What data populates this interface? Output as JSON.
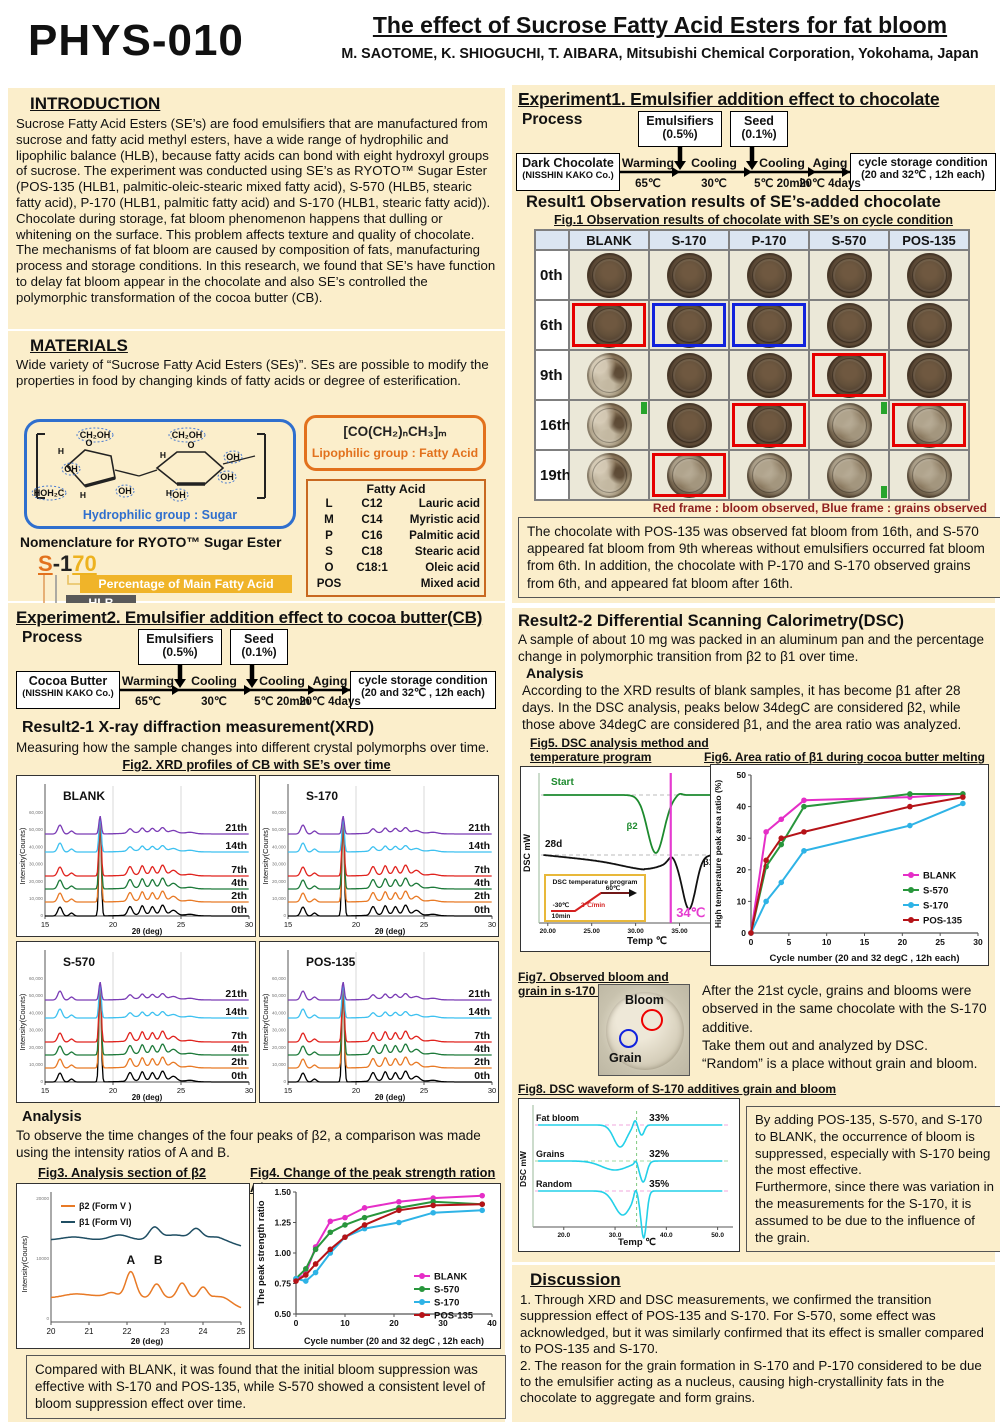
{
  "header": {
    "code": "PHYS-010",
    "title": "The effect of Sucrose Fatty Acid Esters for fat bloom",
    "authors": "M. SAOTOME, K. SHIOGUCHI, T. AIBARA, Mitsubishi Chemical Corporation, Yokohama, Japan"
  },
  "introduction": {
    "title": "INTRODUCTION",
    "body": "Sucrose Fatty Acid Esters (SE’s) are food emulsifiers that are manufactured from sucrose and fatty acid methyl esters, have a wide range of hydrophilic and lipophilic balance (HLB), because fatty acids can bond with eight hydroxyl groups of sucrose. The experiment was conducted using SE’s as RYOTO™ Sugar Ester (POS-135 (HLB1, palmitic-oleic-stearic mixed fatty acid), S-570 (HLB5, stearic fatty acid), P-170 (HLB1, palmitic fatty acid) and S-170 (HLB1, stearic fatty acid)). Chocolate during storage, fat bloom phenomenon happens that dulling or whitening on the surface. This problem affects texture and quality of chocolate. The mechanisms of fat bloom are caused by composition of fats, manufacturing process and storage conditions. In this research, we found that SE’s have function to delay fat bloom appear in the chocolate and also SE’s controlled the polymorphic transformation of the cocoa butter (CB)."
  },
  "materials": {
    "title": "MATERIALS",
    "body": "Wide variety of “Sucrose Fatty Acid Esters (SEs)”. SEs are possible to modify the properties in food by changing kinds of fatty acids or degree of esterification.",
    "hydrophilic_label": "Hydrophilic group : Sugar",
    "formula": "[CO(CH₂)ₙCH₃]ₘ",
    "lipophilic_label": "Lipophilic group : Fatty Acid",
    "molecule_labels": [
      "CH₂OH",
      "CH₂OH",
      "HOH₂C",
      "OH",
      "OH",
      "OH",
      "OH",
      "OH",
      "O",
      "O",
      "H",
      "H",
      "H",
      "H"
    ],
    "fatty_acid_table": {
      "title": "Fatty Acid",
      "rows": [
        [
          "L",
          "C12",
          "Lauric acid"
        ],
        [
          "M",
          "C14",
          "Myristic acid"
        ],
        [
          "P",
          "C16",
          "Palmitic acid"
        ],
        [
          "S",
          "C18",
          "Stearic acid"
        ],
        [
          "O",
          "C18:1",
          "Oleic acid"
        ],
        [
          "POS",
          "",
          "Mixed acid"
        ]
      ]
    },
    "nomenclature_title": "Nomenclature for RYOTO™ Sugar Ester",
    "code_parts": {
      "kind": "S",
      "hlb": "-1",
      "pct": "70"
    },
    "callouts": {
      "pct": "Percentage of Main Fatty Acid",
      "hlb": "HLB",
      "kind": "Kinds of Fatty Acid"
    }
  },
  "experiment1": {
    "title": "Experiment1. Emulsifier addition effect to chocolate",
    "process_label": "Process",
    "flow": {
      "start": {
        "line1": "Dark Chocolate",
        "line2": "(NISSHIN KAKO Co.)"
      },
      "add1": {
        "line1": "Emulsifiers",
        "line2": "(0.5%)"
      },
      "add2": {
        "line1": "Seed",
        "line2": "(0.1%)"
      },
      "steps": [
        {
          "name": "Warming",
          "temp": "65℃"
        },
        {
          "name": "Cooling",
          "temp": "30℃"
        },
        {
          "name": "Cooling",
          "temp": "5℃ 20min"
        },
        {
          "name": "Aging",
          "temp": "20℃ 4days"
        }
      ],
      "end": {
        "line1": "cycle storage condition",
        "line2": "(20 and 32℃ , 12h each)"
      }
    },
    "result_title": "Result1 Observation results of SE’s-added chocolate",
    "fig1_caption": "Fig.1 Observation results of chocolate with SE’s on cycle condition",
    "table": {
      "columns": [
        "BLANK",
        "S-170",
        "P-170",
        "S-570",
        "POS-135"
      ],
      "rows": [
        {
          "label": "0th",
          "cells": [
            {
              "look": "n"
            },
            {
              "look": "n"
            },
            {
              "look": "n"
            },
            {
              "look": "n"
            },
            {
              "look": "n"
            }
          ]
        },
        {
          "label": "6th",
          "cells": [
            {
              "look": "n",
              "frame": "red"
            },
            {
              "look": "n",
              "frame": "blue"
            },
            {
              "look": "n",
              "frame": "blue"
            },
            {
              "look": "n"
            },
            {
              "look": "n"
            }
          ]
        },
        {
          "label": "9th",
          "cells": [
            {
              "look": "h"
            },
            {
              "look": "n"
            },
            {
              "look": "n"
            },
            {
              "look": "n",
              "frame": "red"
            },
            {
              "look": "n"
            }
          ]
        },
        {
          "label": "16th",
          "cells": [
            {
              "look": "h",
              "mark": "tr"
            },
            {
              "look": "n"
            },
            {
              "look": "n",
              "frame": "red"
            },
            {
              "look": "b",
              "mark": "tr"
            },
            {
              "look": "b",
              "frame": "red"
            }
          ]
        },
        {
          "label": "19th",
          "cells": [
            {
              "look": "h"
            },
            {
              "look": "b",
              "frame": "red"
            },
            {
              "look": "b"
            },
            {
              "look": "b",
              "mark": "br"
            },
            {
              "look": "b"
            }
          ]
        }
      ]
    },
    "frame_legend": "Red frame : bloom observed, Blue frame : grains observed",
    "summary": "The chocolate with POS-135 was observed fat bloom from 16th, and S-570 appeared fat bloom from 9th whereas without emulsifiers occurred fat bloom from 6th. In addition, the chocolate with P-170 and S-170 observed grains from 6th, and appeared fat bloom after 16th."
  },
  "experiment2": {
    "title": "Experiment2. Emulsifier addition effect to cocoa butter(CB)",
    "process_label": "Process",
    "flow": {
      "start": {
        "line1": "Cocoa Butter",
        "line2": "(NISSHIN KAKO Co.)"
      },
      "add1": {
        "line1": "Emulsifiers",
        "line2": "(0.5%)"
      },
      "add2": {
        "line1": "Seed",
        "line2": "(0.1%)"
      },
      "steps": [
        {
          "name": "Warming",
          "temp": "65℃"
        },
        {
          "name": "Cooling",
          "temp": "30℃"
        },
        {
          "name": "Cooling",
          "temp": "5℃ 20min"
        },
        {
          "name": "Aging",
          "temp": "20℃ 4days"
        }
      ],
      "end": {
        "line1": "cycle storage condition",
        "line2": "(20 and 32℃ , 12h each)"
      }
    },
    "result_title": "Result2-1  X-ray diffraction measurement(XRD)",
    "method_note": "Measuring how the sample changes into different crystal polymorphs over time.",
    "fig2_caption": "Fig2. XRD profiles of CB with SE’s over time",
    "analysis_title": "Analysis",
    "analysis_body": "To observe the time changes of the four peaks of β2, a comparison was made using the intensity ratios of A and B.",
    "fig3_caption": "Fig3. Analysis section of β2",
    "fig4_caption": "Fig4. Change of the peak strength ration A/B",
    "conclusion": "Compared with BLANK, it was found that the initial bloom suppression was effective with S-170 and POS-135, while S-570 showed a consistent level of bloom suppression effect over time."
  },
  "result22": {
    "title": "Result2-2 Differential Scanning Calorimetry(DSC)",
    "intro": "A sample of about 10 mg was packed in an aluminum pan and the percentage change in polymorphic transition from β2 to β1 over time.",
    "analysis_title": "Analysis",
    "analysis_body": "According to the XRD results of blank samples, it has become β1 after 28 days. In the DSC analysis, peaks below 34degC are considered β2, while those above 34degC are considered β1, and the area ratio was analyzed.",
    "fig5_caption": "Fig5. DSC analysis method and temperature program",
    "fig6_caption": "Fig6. Area ratio of β1 during cocoa butter melting peak",
    "fig7_caption": "Fig7. Observed bloom and grain in s-170 adding",
    "fig7_bloom": "Bloom",
    "fig7_grain": "Grain",
    "fig7_text": "After the 21st cycle, grains and blooms were observed in the same chocolate with the S-170 additive.\nTake them out and analyzed by DSC.\n“Random” is a place without grain and bloom.",
    "fig8_caption": "Fig8. DSC waveform of S-170 additives grain and bloom",
    "fig8_box": "By adding POS-135, S-570, and S-170 to BLANK, the occurrence of bloom is suppressed, especially with S-170 being the most effective.\nFurthermore, since there was variation in the measurements for the S-170, it is assumed to be due to the influence of the grain."
  },
  "discussion": {
    "title": "Discussion",
    "body1": "1. Through XRD and DSC measurements, we confirmed the transition suppression effect of POS-135 and S-170. For S-570, some effect was acknowledged, but it was similarly confirmed that its effect is smaller compared to POS-135 and S-170.",
    "body2": "2. The reason for the grain formation in S-170 and P-170 considered to be due to the emulsifier acting as a nucleus, causing high-crystallinity fats in the chocolate to aggregate and form grains."
  },
  "colors": {
    "panel_bg": "#fbeecb",
    "table_header_bg": "#dbe5f1",
    "frame_bloom": "#e60000",
    "frame_grain": "#1122dd",
    "series": {
      "BLANK": "#e52ec7",
      "S-570": "#28963c",
      "S-170": "#2eb3e6",
      "POS-135": "#b51318"
    },
    "xrd_traces": {
      "0th": "#000000",
      "2th": "#e87a26",
      "4th": "#1d7a3a",
      "7th": "#e0231e",
      "14th": "#3ec1f0",
      "21th": "#7a3bb5"
    }
  },
  "chart_data": [
    {
      "id": "fig2",
      "type": "line",
      "title": "Fig2. XRD profiles of CB with SE's over time",
      "panels": [
        "BLANK",
        "S-170",
        "S-570",
        "POS-135"
      ],
      "xlabel": "2θ (deg)",
      "ylabel": "Intensity(Counts)",
      "xlim": [
        15,
        30
      ],
      "xticks": [
        15,
        20,
        25,
        30
      ],
      "ytick_labels": [
        "60,000",
        "50,000",
        "40,000",
        "30,000",
        "20,000",
        "10,000",
        "0"
      ],
      "traces": [
        "0th",
        "2th",
        "4th",
        "7th",
        "14th",
        "21th"
      ],
      "note": "Stacked XRD intensity profiles per cycle; sharp main peak near 2θ=19deg in all traces; β2 secondary peak cluster at 2θ=21–24deg strong at 0th–7th cycles and smoothed out by 14th–21th cycles."
    },
    {
      "id": "fig3",
      "type": "line",
      "title": "Fig3. Analysis section of β2",
      "xlabel": "2θ (deg)",
      "ylabel": "Intensity(Counts)",
      "xlim": [
        20,
        25
      ],
      "xticks": [
        20,
        21,
        22,
        23,
        24,
        25
      ],
      "series_labels": [
        "β2 (Form V )",
        "β1 (Form VI)"
      ],
      "peak_A_2theta": 22.1,
      "peak_B_2theta": 22.8,
      "annotations": [
        "A",
        "B"
      ],
      "note": "β2 (Form V, orange) shows four peaks between 2θ=22 and 24.2; peaks A (≈22.1) and B (≈22.8) are used for the A/B intensity ratio. β1 (Form VI, dark teal) curve drawn above."
    },
    {
      "id": "fig4",
      "type": "line",
      "title": "Fig4. Change of the peak strength ration A/B",
      "xlabel": "Cycle number (20 and 32 degC , 12h each)",
      "ylabel": "The peak strength ratio",
      "xlim": [
        0,
        40
      ],
      "ylim": [
        0.5,
        1.5
      ],
      "xticks": [
        0,
        10,
        20,
        30,
        40
      ],
      "yticks": [
        0.5,
        0.75,
        1.0,
        1.25,
        1.5
      ],
      "x": [
        0,
        2,
        4,
        7,
        10,
        14,
        21,
        28,
        38
      ],
      "series": [
        {
          "name": "BLANK",
          "values": [
            0.78,
            0.83,
            1.05,
            1.26,
            1.29,
            1.37,
            1.42,
            1.45,
            1.47
          ]
        },
        {
          "name": "S-570",
          "values": [
            0.79,
            0.87,
            1.03,
            1.17,
            1.23,
            1.29,
            1.37,
            1.42,
            1.4
          ]
        },
        {
          "name": "S-170",
          "values": [
            0.79,
            0.77,
            0.84,
            1.0,
            1.13,
            1.2,
            1.25,
            1.33,
            1.35
          ]
        },
        {
          "name": "POS-135",
          "values": [
            0.77,
            0.82,
            0.91,
            1.03,
            1.13,
            1.23,
            1.35,
            1.39,
            1.4
          ]
        }
      ],
      "legend": [
        "BLANK",
        "S-570",
        "S-170",
        "POS-135"
      ],
      "legend_position": "lower right"
    },
    {
      "id": "fig5",
      "type": "line",
      "title": "Fig5. DSC analysis method and temperature program",
      "xlabel": "Temp ℃",
      "ylabel": "DSC mW",
      "xlim": [
        20,
        42
      ],
      "xticks": [
        "20.00",
        "25.00",
        "30.00",
        "35.00",
        "40.00"
      ],
      "curve_labels": {
        "top": "Start",
        "top_peak": "β2",
        "bottom": "28d",
        "bottom_peak1": "β2",
        "bottom_peak2": "β1"
      },
      "threshold_line": "34℃",
      "program_box": {
        "title": "DSC temperature program",
        "start": "-30℃",
        "hold": "10min",
        "rate": "2℃/min",
        "end": "60℃"
      },
      "note": "Start sample melts as single β2 endotherm near 32℃; 28d sample shows β2 shoulder below 34℃ and β1 endotherm near 36℃."
    },
    {
      "id": "fig6",
      "type": "line",
      "title": "Fig6. Area ratio of β1 during cocoa butter melting peak",
      "xlabel": "Cycle number (20 and 32 degC , 12h each)",
      "ylabel": "High temperature peak area ratio (%)",
      "xlim": [
        0,
        30
      ],
      "ylim": [
        0,
        50
      ],
      "xticks": [
        0,
        5,
        10,
        15,
        20,
        25,
        30
      ],
      "yticks": [
        0,
        10,
        20,
        30,
        40,
        50
      ],
      "x": [
        0,
        2,
        4,
        7,
        21,
        28
      ],
      "series": [
        {
          "name": "BLANK",
          "values": [
            0,
            32,
            36,
            42,
            43,
            44
          ]
        },
        {
          "name": "S-570",
          "values": [
            0,
            21,
            28,
            40,
            44,
            44
          ]
        },
        {
          "name": "S-170",
          "values": [
            0,
            10,
            16,
            26,
            34,
            41
          ]
        },
        {
          "name": "POS-135",
          "values": [
            0,
            23,
            30,
            32,
            40,
            43
          ]
        }
      ],
      "legend": [
        "BLANK",
        "S-570",
        "S-170",
        "POS-135"
      ],
      "legend_position": "right"
    },
    {
      "id": "fig8",
      "type": "line",
      "title": "Fig8. DSC waveform of S-170 additives grain and bloom",
      "xlabel": "Temp ℃",
      "ylabel": "DSC mW",
      "xticks": [
        "20.0",
        "30.0",
        "40.0",
        "50.0"
      ],
      "traces": [
        {
          "name": "Fat bloom",
          "beta1_area_ratio": "33%"
        },
        {
          "name": "Grains",
          "beta1_area_ratio": "32%"
        },
        {
          "name": "Random",
          "beta1_area_ratio": "35%"
        }
      ],
      "note": "Three stacked cyan DSC endotherm traces with dashed baselines; vertical dashed line near 34℃ separates β2 and β1 areas."
    }
  ]
}
